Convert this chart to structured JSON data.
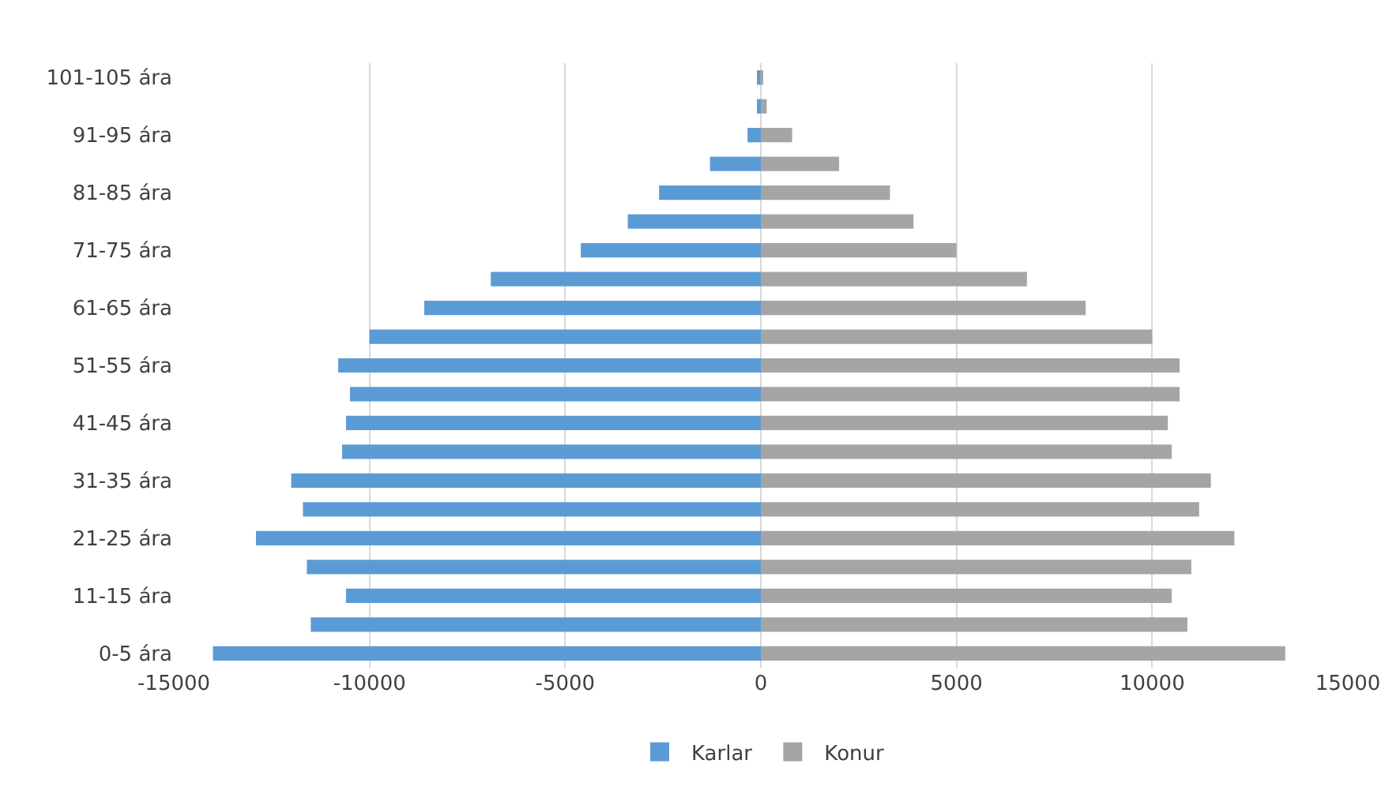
{
  "chart_data": {
    "type": "bar",
    "orientation": "horizontal",
    "stacked": true,
    "categories": [
      "101-105 ára",
      null,
      "91-95 ára",
      null,
      "81-85 ára",
      null,
      "71-75 ára",
      null,
      "61-65 ára",
      null,
      "51-55 ára",
      null,
      "41-45 ára",
      null,
      "31-35 ára",
      null,
      "21-25 ára",
      null,
      "11-15 ára",
      null,
      "0-5 ára"
    ],
    "series": [
      {
        "name": "Karlar",
        "color": "#5b9bd5",
        "values": [
          -100,
          -100,
          -340,
          -1300,
          -2600,
          -3400,
          -4600,
          -6900,
          -8600,
          -10000,
          -10800,
          -10500,
          -10600,
          -10700,
          -12000,
          -11700,
          -12900,
          -11600,
          -10600,
          -11500,
          -14000
        ]
      },
      {
        "name": "Konur",
        "color": "#a5a5a5",
        "values": [
          50,
          150,
          800,
          2000,
          3300,
          3900,
          5000,
          6800,
          8300,
          10000,
          10700,
          10700,
          10400,
          10500,
          11500,
          11200,
          12100,
          11000,
          10500,
          10900,
          13400
        ]
      }
    ],
    "xlim": [
      -15000,
      15000
    ],
    "xticks": [
      -15000,
      -10000,
      -5000,
      0,
      5000,
      10000,
      15000
    ],
    "grid": "x",
    "legend": "bottom"
  }
}
